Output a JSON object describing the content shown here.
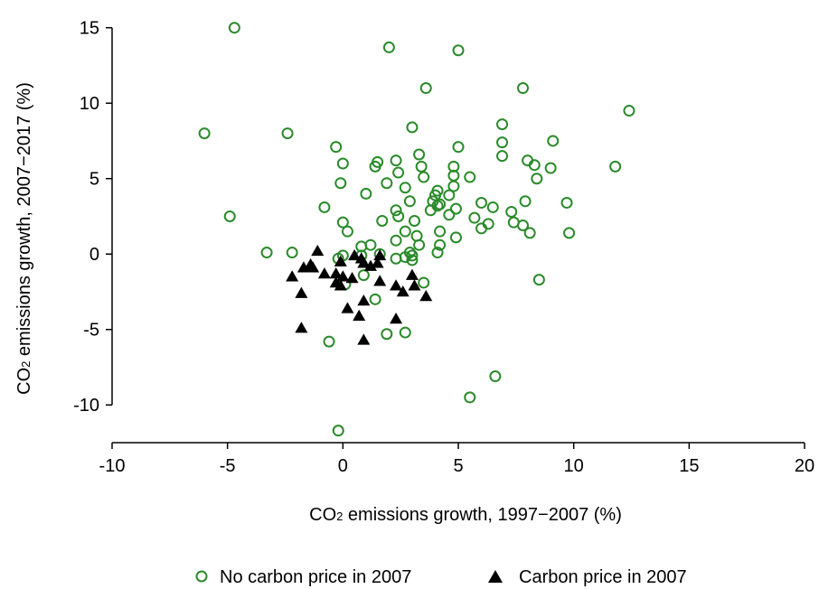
{
  "chart_data": {
    "type": "scatter",
    "xlabel": {
      "prefix": "CO",
      "sub": "2",
      "suffix": " emissions growth, 1997−2007 (%)"
    },
    "ylabel": {
      "prefix": "CO",
      "sub": "2",
      "suffix": " emissions growth, 2007−2017 (%)"
    },
    "xlim": [
      -10,
      20
    ],
    "ylim": [
      -12.5,
      16
    ],
    "xticks": [
      "-10",
      "-5",
      "0",
      "5",
      "10",
      "15",
      "20"
    ],
    "xtick_values": [
      -10,
      -5,
      0,
      5,
      10,
      15,
      20
    ],
    "yticks": [
      "-10",
      "-5",
      "0",
      "5",
      "10",
      "15"
    ],
    "ytick_values": [
      -10,
      -5,
      0,
      5,
      10,
      15
    ],
    "grid": false,
    "legend_position": "bottom-center",
    "series": [
      {
        "name": "No carbon price in 2007",
        "marker": "hollow-circle",
        "color": "#2a8a2a",
        "points": [
          [
            -4.7,
            15.0
          ],
          [
            2.0,
            13.7
          ],
          [
            5.0,
            13.5
          ],
          [
            3.6,
            11.0
          ],
          [
            7.8,
            11.0
          ],
          [
            12.4,
            9.5
          ],
          [
            -6.0,
            8.0
          ],
          [
            -2.4,
            8.0
          ],
          [
            3.0,
            8.4
          ],
          [
            6.9,
            8.6
          ],
          [
            6.9,
            7.4
          ],
          [
            9.1,
            7.5
          ],
          [
            -0.3,
            7.1
          ],
          [
            5.0,
            7.1
          ],
          [
            3.3,
            6.6
          ],
          [
            6.9,
            6.5
          ],
          [
            2.3,
            6.2
          ],
          [
            8.0,
            6.2
          ],
          [
            1.5,
            6.1
          ],
          [
            0.0,
            6.0
          ],
          [
            1.4,
            5.8
          ],
          [
            3.4,
            5.8
          ],
          [
            4.8,
            5.8
          ],
          [
            8.3,
            5.9
          ],
          [
            9.0,
            5.7
          ],
          [
            11.8,
            5.8
          ],
          [
            2.4,
            5.4
          ],
          [
            3.5,
            5.1
          ],
          [
            4.8,
            5.2
          ],
          [
            5.5,
            5.1
          ],
          [
            8.4,
            5.0
          ],
          [
            -0.1,
            4.7
          ],
          [
            1.9,
            4.7
          ],
          [
            2.7,
            4.4
          ],
          [
            4.1,
            4.2
          ],
          [
            4.8,
            4.5
          ],
          [
            1.0,
            4.0
          ],
          [
            4.0,
            3.9
          ],
          [
            4.6,
            3.9
          ],
          [
            2.9,
            3.5
          ],
          [
            3.9,
            3.5
          ],
          [
            4.1,
            3.2
          ],
          [
            6.0,
            3.4
          ],
          [
            7.9,
            3.5
          ],
          [
            9.7,
            3.4
          ],
          [
            -0.8,
            3.1
          ],
          [
            2.3,
            2.9
          ],
          [
            3.8,
            2.9
          ],
          [
            4.2,
            3.3
          ],
          [
            4.6,
            2.6
          ],
          [
            4.9,
            3.0
          ],
          [
            6.5,
            3.1
          ],
          [
            7.3,
            2.8
          ],
          [
            2.4,
            2.5
          ],
          [
            3.1,
            2.2
          ],
          [
            5.7,
            2.4
          ],
          [
            6.3,
            2.0
          ],
          [
            7.4,
            2.1
          ],
          [
            0.0,
            2.1
          ],
          [
            1.7,
            2.2
          ],
          [
            6.0,
            1.7
          ],
          [
            7.8,
            1.9
          ],
          [
            0.2,
            1.5
          ],
          [
            2.7,
            1.5
          ],
          [
            4.2,
            1.5
          ],
          [
            8.1,
            1.4
          ],
          [
            9.8,
            1.4
          ],
          [
            3.2,
            1.2
          ],
          [
            4.9,
            1.1
          ],
          [
            2.3,
            0.9
          ],
          [
            0.8,
            0.5
          ],
          [
            1.2,
            0.6
          ],
          [
            4.2,
            0.6
          ],
          [
            3.3,
            0.6
          ],
          [
            -3.3,
            0.1
          ],
          [
            -2.2,
            0.1
          ],
          [
            0.0,
            -0.1
          ],
          [
            0.8,
            -0.1
          ],
          [
            1.6,
            0.0
          ],
          [
            2.9,
            0.1
          ],
          [
            3.0,
            -0.1
          ],
          [
            4.1,
            0.1
          ],
          [
            2.3,
            -0.3
          ],
          [
            2.7,
            -0.2
          ],
          [
            3.0,
            -0.4
          ],
          [
            -0.2,
            -0.3
          ],
          [
            0.9,
            -1.4
          ],
          [
            0.1,
            -2.0
          ],
          [
            3.5,
            -1.9
          ],
          [
            1.4,
            -3.0
          ],
          [
            8.5,
            -1.7
          ],
          [
            -0.6,
            -5.8
          ],
          [
            1.9,
            -5.3
          ],
          [
            2.7,
            -5.2
          ],
          [
            6.6,
            -8.1
          ],
          [
            5.5,
            -9.5
          ],
          [
            -0.2,
            -11.7
          ],
          [
            -4.9,
            2.5
          ]
        ]
      },
      {
        "name": "Carbon price in 2007",
        "marker": "filled-triangle",
        "color": "#000000",
        "points": [
          [
            -1.1,
            0.2
          ],
          [
            0.5,
            -0.1
          ],
          [
            1.6,
            -0.1
          ],
          [
            -1.4,
            -0.7
          ],
          [
            -0.1,
            -0.5
          ],
          [
            0.8,
            -0.3
          ],
          [
            1.5,
            -0.6
          ],
          [
            -1.7,
            -0.9
          ],
          [
            -1.3,
            -0.9
          ],
          [
            0.9,
            -0.6
          ],
          [
            1.2,
            -0.8
          ],
          [
            -2.2,
            -1.5
          ],
          [
            -0.8,
            -1.3
          ],
          [
            -0.3,
            -1.3
          ],
          [
            0.0,
            -1.5
          ],
          [
            0.4,
            -1.6
          ],
          [
            1.6,
            -1.8
          ],
          [
            3.0,
            -1.4
          ],
          [
            -0.3,
            -1.9
          ],
          [
            -0.1,
            -2.1
          ],
          [
            2.3,
            -2.1
          ],
          [
            3.1,
            -2.1
          ],
          [
            -1.8,
            -2.6
          ],
          [
            2.6,
            -2.5
          ],
          [
            3.6,
            -2.8
          ],
          [
            0.9,
            -3.1
          ],
          [
            0.2,
            -3.6
          ],
          [
            0.7,
            -4.1
          ],
          [
            2.3,
            -4.3
          ],
          [
            -1.8,
            -4.9
          ],
          [
            0.9,
            -5.7
          ]
        ]
      }
    ]
  }
}
